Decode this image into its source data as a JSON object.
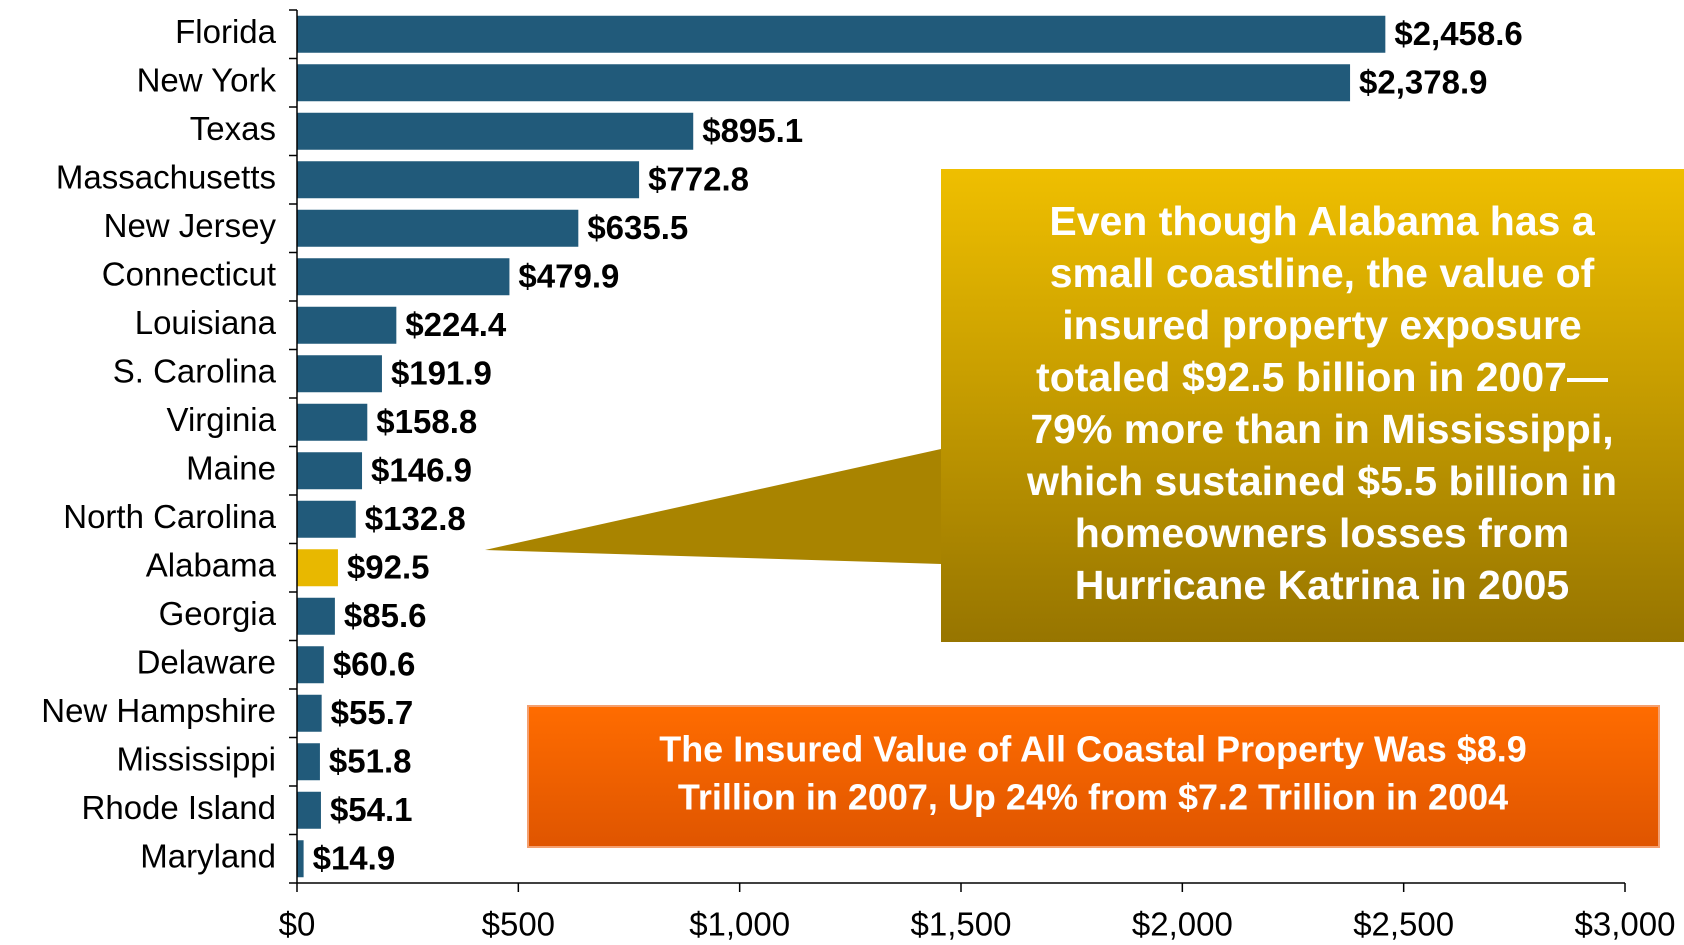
{
  "chart_data": {
    "type": "hbar",
    "categories": [
      "Florida",
      "New York",
      "Texas",
      "Massachusetts",
      "New Jersey",
      "Connecticut",
      "Louisiana",
      "S. Carolina",
      "Virginia",
      "Maine",
      "North Carolina",
      "Alabama",
      "Georgia",
      "Delaware",
      "New Hampshire",
      "Mississippi",
      "Rhode Island",
      "Maryland"
    ],
    "values": [
      2458.6,
      2378.9,
      895.1,
      772.8,
      635.5,
      479.9,
      224.4,
      191.9,
      158.8,
      146.9,
      132.8,
      92.5,
      85.6,
      60.6,
      55.7,
      51.8,
      54.1,
      14.9
    ],
    "value_labels": [
      "$2,458.6",
      "$2,378.9",
      "$895.1",
      "$772.8",
      "$635.5",
      "$479.9",
      "$224.4",
      "$191.9",
      "$158.8",
      "$146.9",
      "$132.8",
      "$92.5",
      "$85.6",
      "$60.6",
      "$55.7",
      "$51.8",
      "$54.1",
      "$14.9"
    ],
    "colors": [
      "#215a7a",
      "#215a7a",
      "#215a7a",
      "#215a7a",
      "#215a7a",
      "#215a7a",
      "#215a7a",
      "#215a7a",
      "#215a7a",
      "#215a7a",
      "#215a7a",
      "#e8b800",
      "#215a7a",
      "#215a7a",
      "#215a7a",
      "#215a7a",
      "#215a7a",
      "#215a7a"
    ],
    "xlim": [
      0,
      3000
    ],
    "xticks": [
      {
        "value": 0,
        "label": "$0"
      },
      {
        "value": 500,
        "label": "$500"
      },
      {
        "value": 1000,
        "label": "$1,000"
      },
      {
        "value": 1500,
        "label": "$1,500"
      },
      {
        "value": 2000,
        "label": "$2,000"
      },
      {
        "value": 2500,
        "label": "$2,500"
      },
      {
        "value": 3000,
        "label": "$3,000"
      }
    ],
    "annotations": [
      {
        "lines": [
          "Even though Alabama has a",
          "small coastline, the value of",
          "insured property exposure",
          "totaled $92.5 billion in 2007—",
          "79% more than in Mississippi,",
          "which sustained $5.5 billion in",
          "homeowners losses from",
          "Hurricane Katrina in 2005"
        ]
      },
      {
        "lines": [
          "The Insured Value of All Coastal Property Was $8.9",
          "Trillion in 2007, Up 24% from $7.2 Trillion in 2004"
        ]
      }
    ]
  }
}
